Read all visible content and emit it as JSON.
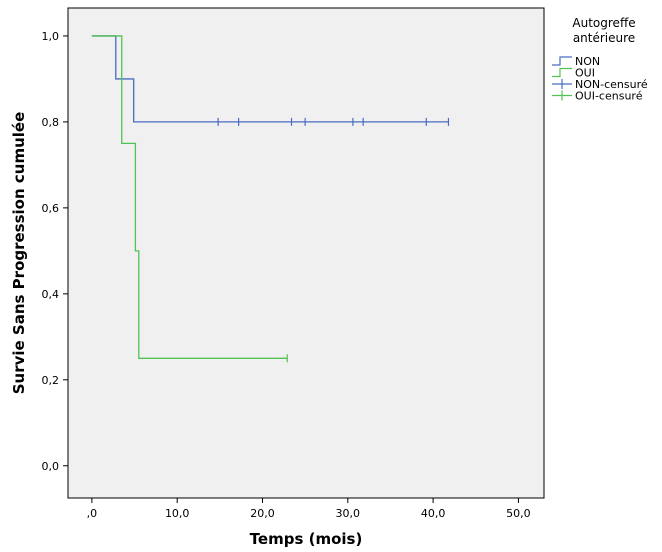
{
  "chart_data": {
    "type": "line",
    "step": true,
    "xlabel": "Temps (mois)",
    "ylabel": "Survie Sans Progression cumulée",
    "xlim": [
      -2.8,
      53.0
    ],
    "ylim": [
      -0.075,
      1.065
    ],
    "x_ticks": [
      0,
      10,
      20,
      30,
      40,
      50
    ],
    "x_tick_labels": [
      ",0",
      "10,0",
      "20,0",
      "30,0",
      "40,0",
      "50,0"
    ],
    "y_ticks": [
      0,
      0.2,
      0.4,
      0.6,
      0.8,
      1.0
    ],
    "y_tick_labels": [
      "0,0",
      "0,2",
      "0,4",
      "0,6",
      "0,8",
      "1,0"
    ],
    "legend_position": "outside-right",
    "legend_title_lines": [
      "Autogreffe",
      "antérieure"
    ],
    "series": [
      {
        "name": "NON",
        "color": "#4a6cc0",
        "steps": [
          [
            0,
            1.0
          ],
          [
            2.8,
            0.9
          ],
          [
            4.9,
            0.8
          ],
          [
            41.8,
            0.8
          ]
        ],
        "censored": [
          14.8,
          17.2,
          23.4,
          25.0,
          30.6,
          31.8,
          39.2,
          41.8
        ]
      },
      {
        "name": "OUI",
        "color": "#52c352",
        "steps": [
          [
            0,
            1.0
          ],
          [
            3.5,
            0.75
          ],
          [
            5.1,
            0.5
          ],
          [
            5.5,
            0.25
          ],
          [
            22.9,
            0.25
          ]
        ],
        "censored": [
          22.9
        ]
      }
    ],
    "legend": [
      {
        "label": "NON",
        "kind": "step",
        "color": "#4a6cc0"
      },
      {
        "label": "OUI",
        "kind": "step",
        "color": "#52c352"
      },
      {
        "label": "NON-censuré",
        "kind": "cross",
        "color": "#4a6cc0"
      },
      {
        "label": "OUI-censuré",
        "kind": "cross",
        "color": "#52c352"
      }
    ]
  }
}
